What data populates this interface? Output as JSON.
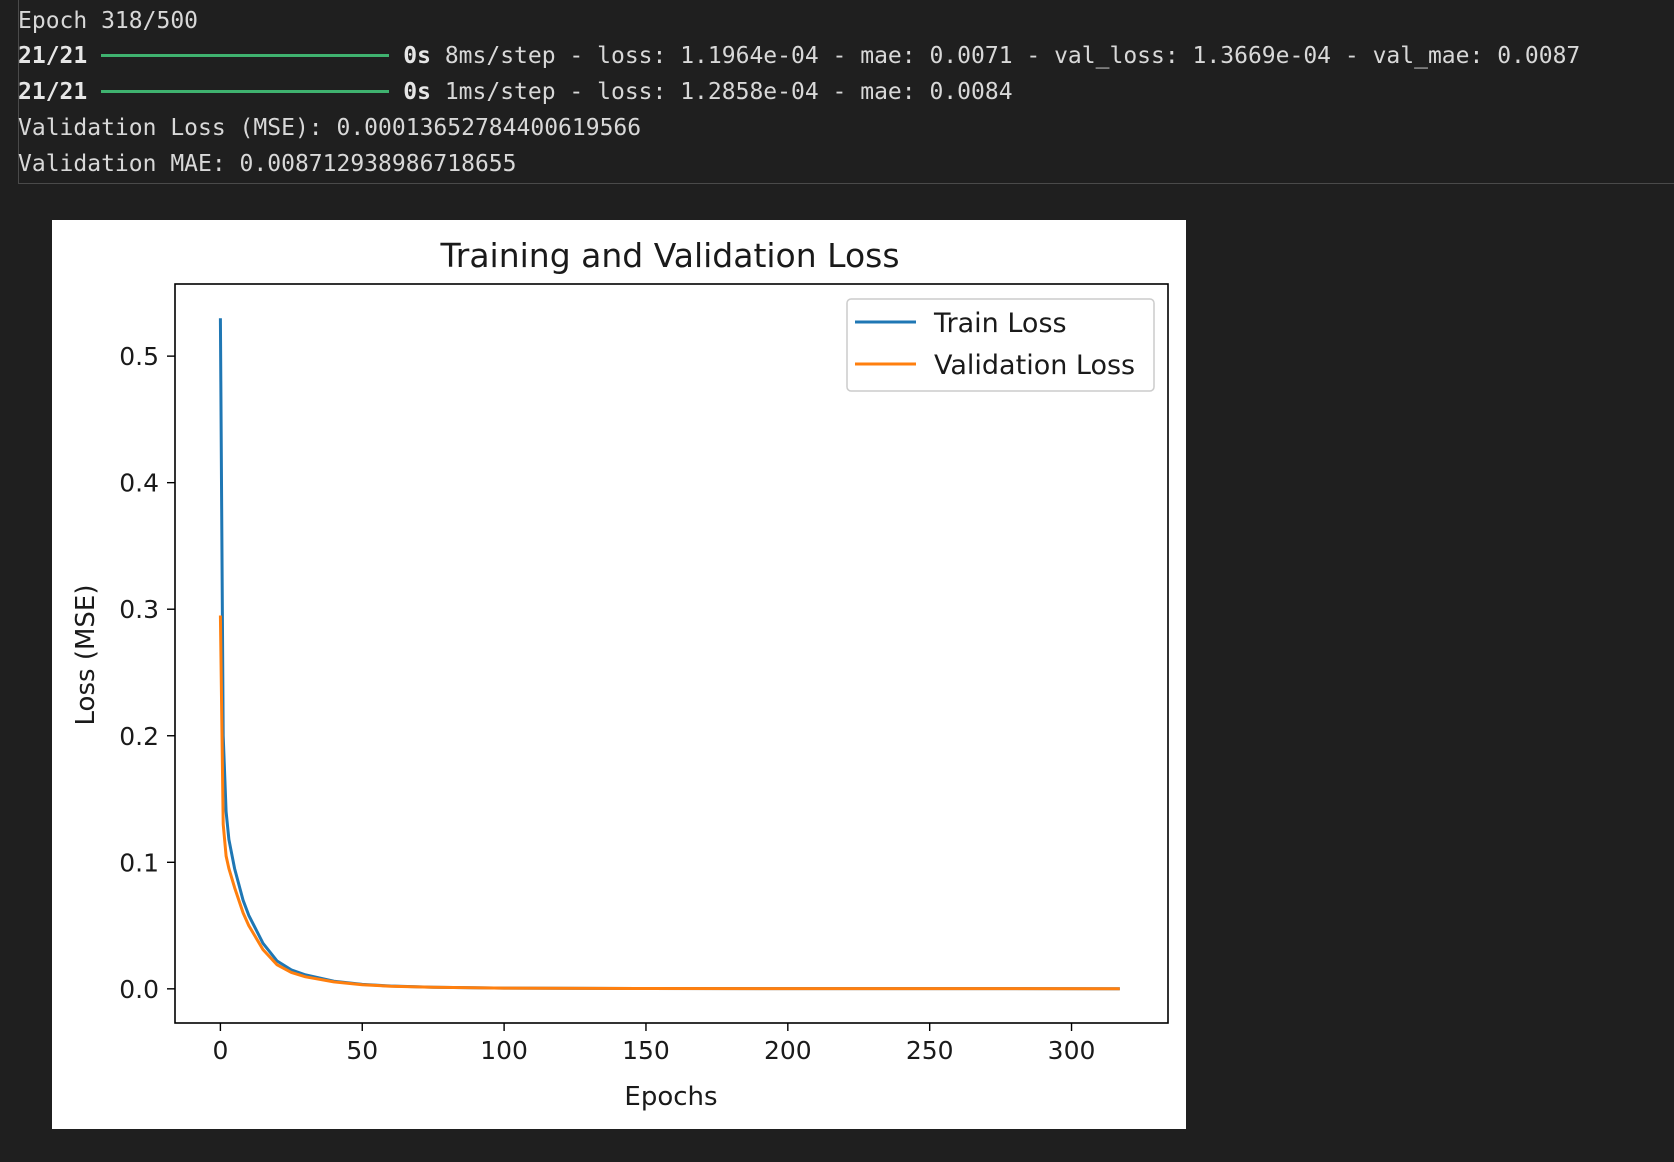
{
  "console": {
    "epoch_line": "Epoch 318/500",
    "progress_lines": [
      {
        "steps": "21/21",
        "time": "0s",
        "rest": "8ms/step - loss: 1.1964e-04 - mae: 0.0071 - val_loss: 1.3669e-04 - val_mae: 0.0087",
        "progress": 1.0
      },
      {
        "steps": "21/21",
        "time": "0s",
        "rest": "1ms/step - loss: 1.2858e-04 - mae: 0.0084",
        "progress": 1.0
      }
    ],
    "val_loss_line": "Validation Loss (MSE): 0.00013652784400619566",
    "val_mae_line": "Validation MAE: 0.008712938986718655",
    "colors": {
      "background": "#1f1f1f",
      "text": "#d8d8d8",
      "progress_bar": "#3fb26f"
    }
  },
  "chart_data": {
    "type": "line",
    "title": "Training and Validation Loss",
    "xlabel": "Epochs",
    "ylabel": "Loss (MSE)",
    "xlim": [
      -16,
      334
    ],
    "ylim": [
      -0.027,
      0.557
    ],
    "xticks": [
      0,
      50,
      100,
      150,
      200,
      250,
      300
    ],
    "yticks": [
      0.0,
      0.1,
      0.2,
      0.3,
      0.4,
      0.5
    ],
    "ytick_labels": [
      "0.0",
      "0.1",
      "0.2",
      "0.3",
      "0.4",
      "0.5"
    ],
    "grid": false,
    "legend": "upper-right",
    "series": [
      {
        "name": "Train Loss",
        "color": "#1f77b4",
        "x": [
          0,
          1,
          2,
          3,
          5,
          8,
          10,
          15,
          20,
          25,
          30,
          40,
          50,
          60,
          75,
          100,
          150,
          200,
          250,
          317
        ],
        "y": [
          0.53,
          0.2,
          0.14,
          0.118,
          0.095,
          0.07,
          0.058,
          0.036,
          0.022,
          0.015,
          0.011,
          0.006,
          0.0035,
          0.0022,
          0.0012,
          0.0006,
          0.0003,
          0.0002,
          0.00015,
          0.00012
        ]
      },
      {
        "name": "Validation Loss",
        "color": "#ff7f0e",
        "x": [
          0,
          1,
          2,
          3,
          5,
          8,
          10,
          15,
          20,
          25,
          30,
          40,
          50,
          60,
          75,
          100,
          150,
          200,
          250,
          317
        ],
        "y": [
          0.295,
          0.13,
          0.105,
          0.095,
          0.08,
          0.06,
          0.05,
          0.031,
          0.019,
          0.013,
          0.0095,
          0.0055,
          0.0033,
          0.0021,
          0.0012,
          0.0006,
          0.0003,
          0.0002,
          0.00015,
          0.00014
        ]
      }
    ]
  }
}
